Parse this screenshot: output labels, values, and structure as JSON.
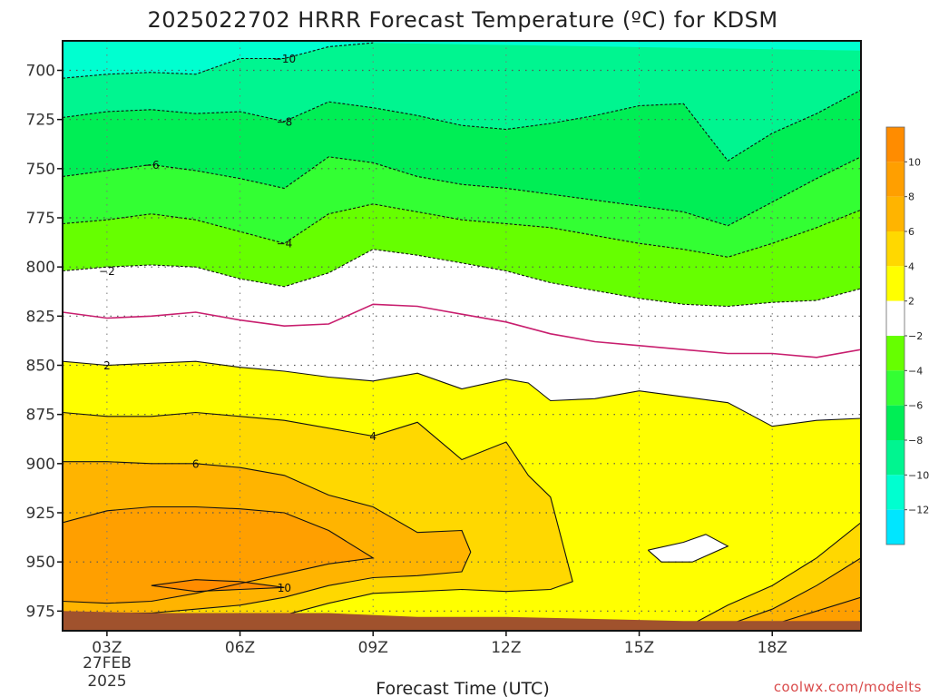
{
  "chart_data": {
    "type": "contour",
    "title": "2025022702 HRRR Forecast Temperature (ºC) for KDSM",
    "xlabel": "Forecast Time (UTC)",
    "ylabel": "",
    "x_ticks": [
      {
        "t": 3,
        "label": "03Z"
      },
      {
        "t": 6,
        "label": "06Z"
      },
      {
        "t": 9,
        "label": "09Z"
      },
      {
        "t": 12,
        "label": "12Z"
      },
      {
        "t": 15,
        "label": "15Z"
      },
      {
        "t": 18,
        "label": "18Z"
      }
    ],
    "date_lines": [
      "27FEB",
      "2025"
    ],
    "xlim": [
      2,
      20
    ],
    "y_ticks": [
      700,
      725,
      750,
      775,
      800,
      825,
      850,
      875,
      900,
      925,
      950,
      975
    ],
    "ylim": [
      685,
      985
    ],
    "y_scale": "linear-inverted",
    "grid": true,
    "colorbar": {
      "bins": [
        {
          "range": [
            10,
            12
          ],
          "color": "#ff8c00"
        },
        {
          "range": [
            8,
            10
          ],
          "color": "#ff9f00"
        },
        {
          "range": [
            6,
            8
          ],
          "color": "#ffb400"
        },
        {
          "range": [
            4,
            6
          ],
          "color": "#ffd800"
        },
        {
          "range": [
            2,
            4
          ],
          "color": "#ffff00"
        },
        {
          "range": [
            -2,
            2
          ],
          "color": "#ffffff"
        },
        {
          "range": [
            -4,
            -2
          ],
          "color": "#66ff00"
        },
        {
          "range": [
            -6,
            -4
          ],
          "color": "#33ff33"
        },
        {
          "range": [
            -8,
            -6
          ],
          "color": "#00ee55"
        },
        {
          "range": [
            -10,
            -8
          ],
          "color": "#00f590"
        },
        {
          "range": [
            -12,
            -10
          ],
          "color": "#00ffd0"
        },
        {
          "range": [
            -14,
            -12
          ],
          "color": "#00e6ff"
        }
      ],
      "tick_labels": [
        "10",
        "8",
        "6",
        "4",
        "2",
        "−2",
        "−4",
        "−6",
        "−8",
        "−10",
        "−12"
      ]
    },
    "surface_color": "#a0522d",
    "zero_line_color": "#c81e6e",
    "contours": [
      {
        "level": -10,
        "label": "−10",
        "points": [
          [
            2,
            704
          ],
          [
            3,
            702
          ],
          [
            4,
            701
          ],
          [
            5,
            702
          ],
          [
            6,
            694
          ],
          [
            7,
            694
          ],
          [
            8,
            688
          ],
          [
            9,
            686
          ]
        ],
        "label_at": [
          7,
          694
        ]
      },
      {
        "level": -8,
        "label": "−8",
        "points": [
          [
            2,
            724
          ],
          [
            3,
            721
          ],
          [
            4,
            720
          ],
          [
            5,
            722
          ],
          [
            6,
            721
          ],
          [
            7,
            726
          ],
          [
            8,
            716
          ],
          [
            9,
            719
          ],
          [
            10,
            723
          ],
          [
            11,
            728
          ],
          [
            12,
            730
          ],
          [
            13,
            727
          ],
          [
            14,
            723
          ],
          [
            15,
            718
          ],
          [
            16,
            717
          ],
          [
            17,
            746
          ],
          [
            18,
            732
          ],
          [
            19,
            722
          ],
          [
            20,
            710
          ]
        ],
        "label_at": [
          7,
          726
        ]
      },
      {
        "level": -6,
        "label": "−6",
        "points": [
          [
            2,
            754
          ],
          [
            3,
            751
          ],
          [
            4,
            748
          ],
          [
            5,
            751
          ],
          [
            6,
            755
          ],
          [
            7,
            760
          ],
          [
            8,
            744
          ],
          [
            9,
            747
          ],
          [
            10,
            754
          ],
          [
            11,
            758
          ],
          [
            12,
            760
          ],
          [
            13,
            763
          ],
          [
            14,
            766
          ],
          [
            15,
            769
          ],
          [
            16,
            772
          ],
          [
            17,
            779
          ],
          [
            18,
            767
          ],
          [
            19,
            755
          ],
          [
            20,
            744
          ]
        ],
        "label_at": [
          4,
          748
        ]
      },
      {
        "level": -4,
        "label": "−4",
        "points": [
          [
            2,
            778
          ],
          [
            3,
            776
          ],
          [
            4,
            773
          ],
          [
            5,
            776
          ],
          [
            6,
            782
          ],
          [
            7,
            788
          ],
          [
            8,
            773
          ],
          [
            9,
            768
          ],
          [
            10,
            772
          ],
          [
            11,
            776
          ],
          [
            12,
            778
          ],
          [
            13,
            780
          ],
          [
            14,
            784
          ],
          [
            15,
            788
          ],
          [
            16,
            791
          ],
          [
            17,
            795
          ],
          [
            18,
            788
          ],
          [
            19,
            780
          ],
          [
            20,
            771
          ]
        ],
        "label_at": [
          7,
          788
        ]
      },
      {
        "level": -2,
        "label": "−2",
        "points": [
          [
            2,
            802
          ],
          [
            3,
            800
          ],
          [
            4,
            799
          ],
          [
            5,
            800
          ],
          [
            6,
            806
          ],
          [
            7,
            810
          ],
          [
            8,
            803
          ],
          [
            9,
            791
          ],
          [
            10,
            794
          ],
          [
            11,
            798
          ],
          [
            12,
            802
          ],
          [
            13,
            808
          ],
          [
            14,
            812
          ],
          [
            15,
            816
          ],
          [
            16,
            819
          ],
          [
            17,
            820
          ],
          [
            18,
            818
          ],
          [
            19,
            817
          ],
          [
            20,
            811
          ]
        ],
        "label_at": [
          3,
          802
        ]
      },
      {
        "level": 0,
        "label": "",
        "points": [
          [
            2,
            823
          ],
          [
            3,
            826
          ],
          [
            4,
            825
          ],
          [
            5,
            823
          ],
          [
            6,
            827
          ],
          [
            7,
            830
          ],
          [
            8,
            829
          ],
          [
            9,
            819
          ],
          [
            10,
            820
          ],
          [
            11,
            824
          ],
          [
            12,
            828
          ],
          [
            13,
            834
          ],
          [
            14,
            838
          ],
          [
            15,
            840
          ],
          [
            16,
            842
          ],
          [
            17,
            844
          ],
          [
            18,
            844
          ],
          [
            19,
            846
          ],
          [
            20,
            842
          ]
        ],
        "label_at": null
      },
      {
        "level": 2,
        "label": "2",
        "points": [
          [
            2,
            848
          ],
          [
            3,
            850
          ],
          [
            4,
            849
          ],
          [
            5,
            848
          ],
          [
            6,
            851
          ],
          [
            7,
            853
          ],
          [
            8,
            856
          ],
          [
            9,
            858
          ],
          [
            10,
            854
          ],
          [
            11,
            862
          ],
          [
            12,
            857
          ],
          [
            12.5,
            859
          ],
          [
            13,
            868
          ],
          [
            14,
            867
          ],
          [
            15,
            863
          ],
          [
            16,
            866
          ],
          [
            17,
            869
          ],
          [
            17.5,
            875
          ],
          [
            18,
            881
          ],
          [
            19,
            878
          ],
          [
            20,
            877
          ]
        ],
        "label_at": [
          3,
          850
        ]
      },
      {
        "level": 4,
        "label": "4",
        "points": [
          [
            2,
            874
          ],
          [
            3,
            876
          ],
          [
            4,
            876
          ],
          [
            5,
            874
          ],
          [
            6,
            876
          ],
          [
            7,
            878
          ],
          [
            8,
            882
          ],
          [
            9,
            886
          ],
          [
            10,
            879
          ],
          [
            11,
            898
          ],
          [
            12,
            889
          ],
          [
            12.5,
            906
          ],
          [
            13,
            917
          ],
          [
            13.5,
            960
          ],
          [
            13,
            964
          ],
          [
            12,
            965
          ],
          [
            11,
            964
          ],
          [
            10,
            965
          ],
          [
            9,
            966
          ],
          [
            8,
            971
          ],
          [
            7,
            977
          ]
        ],
        "label_at": [
          9,
          886
        ]
      },
      {
        "level": 6,
        "label": "6",
        "points": [
          [
            2,
            899
          ],
          [
            3,
            899
          ],
          [
            4,
            900
          ],
          [
            5,
            900
          ],
          [
            6,
            902
          ],
          [
            7,
            906
          ],
          [
            8,
            916
          ],
          [
            9,
            922
          ],
          [
            10,
            935
          ],
          [
            11,
            934
          ],
          [
            11.2,
            945
          ],
          [
            11,
            955
          ],
          [
            10,
            957
          ],
          [
            9,
            958
          ],
          [
            8,
            962
          ],
          [
            7,
            968
          ],
          [
            6,
            972
          ],
          [
            5,
            974
          ],
          [
            4,
            976
          ],
          [
            3,
            976
          ],
          [
            2,
            976
          ]
        ],
        "label_at": [
          5,
          900
        ]
      },
      {
        "level": 8,
        "label": "",
        "points": [
          [
            2,
            930
          ],
          [
            3,
            924
          ],
          [
            4,
            922
          ],
          [
            5,
            922
          ],
          [
            6,
            923
          ],
          [
            7,
            925
          ],
          [
            8,
            934
          ],
          [
            9,
            948
          ],
          [
            8,
            951
          ],
          [
            7,
            956
          ],
          [
            6,
            961
          ],
          [
            5,
            966
          ],
          [
            4,
            970
          ],
          [
            3,
            971
          ],
          [
            2,
            970
          ]
        ],
        "label_at": null
      },
      {
        "level": 10,
        "label": "10",
        "points": [
          [
            4,
            962
          ],
          [
            5,
            959
          ],
          [
            6,
            960
          ],
          [
            7,
            963
          ],
          [
            6,
            964
          ],
          [
            5,
            965
          ],
          [
            4,
            962
          ]
        ],
        "label_at": [
          7,
          963
        ]
      },
      {
        "level": 2,
        "label": "",
        "points": [
          [
            15.2,
            944
          ],
          [
            16,
            940
          ],
          [
            16.5,
            936
          ],
          [
            17,
            942
          ],
          [
            16.2,
            950
          ],
          [
            15.5,
            950
          ],
          [
            15.2,
            944
          ]
        ],
        "label_at": null
      },
      {
        "level": 4,
        "label": "",
        "points": [
          [
            16,
            984
          ],
          [
            17,
            972
          ],
          [
            18,
            962
          ],
          [
            19,
            948
          ],
          [
            20,
            930
          ]
        ],
        "label_at": null
      },
      {
        "level": 6,
        "label": "",
        "points": [
          [
            17,
            982
          ],
          [
            18,
            974
          ],
          [
            19,
            962
          ],
          [
            20,
            948
          ]
        ],
        "label_at": null
      },
      {
        "level": 8,
        "label": "",
        "points": [
          [
            18,
            982
          ],
          [
            19,
            975
          ],
          [
            20,
            968
          ]
        ],
        "label_at": null
      }
    ],
    "surface": [
      [
        2,
        975
      ],
      [
        4,
        976
      ],
      [
        6,
        976
      ],
      [
        8,
        976
      ],
      [
        10,
        978
      ],
      [
        12,
        978
      ],
      [
        14,
        979
      ],
      [
        16,
        980
      ],
      [
        18,
        980
      ],
      [
        20,
        980
      ]
    ]
  },
  "watermark": "coolwx.com/modelts"
}
